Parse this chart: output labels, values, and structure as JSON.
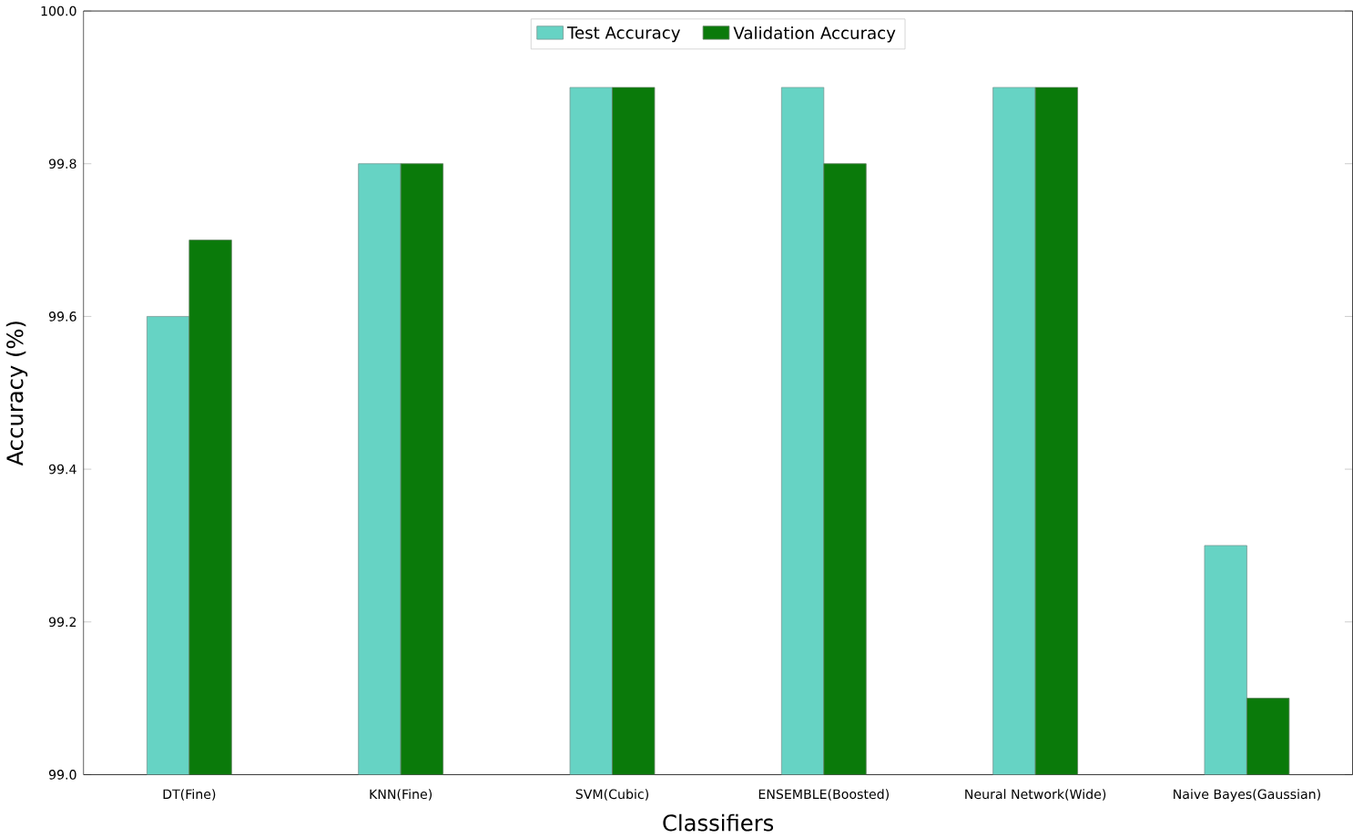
{
  "chart_data": {
    "type": "bar",
    "xlabel": "Classifiers",
    "ylabel": "Accuracy (%)",
    "categories": [
      "DT(Fine)",
      "KNN(Fine)",
      "SVM(Cubic)",
      "ENSEMBLE(Boosted)",
      "Neural Network(Wide)",
      "Naive Bayes(Gaussian)"
    ],
    "series": [
      {
        "name": "Test Accuracy",
        "color": "#66d3c4",
        "values": [
          99.6,
          99.8,
          99.9,
          99.9,
          99.9,
          99.3
        ]
      },
      {
        "name": "Validation Accuracy",
        "color": "#0a7a0a",
        "values": [
          99.7,
          99.8,
          99.9,
          99.8,
          99.9,
          99.1
        ]
      }
    ],
    "ylim": [
      99.0,
      100.0
    ],
    "yticks": [
      {
        "value": 99.0,
        "label": "99.0"
      },
      {
        "value": 99.2,
        "label": "99.2"
      },
      {
        "value": 99.4,
        "label": "99.4"
      },
      {
        "value": 99.6,
        "label": "99.6"
      },
      {
        "value": 99.8,
        "label": "99.8"
      },
      {
        "value": 100.0,
        "label": "100.0"
      }
    ],
    "legend": "top"
  }
}
